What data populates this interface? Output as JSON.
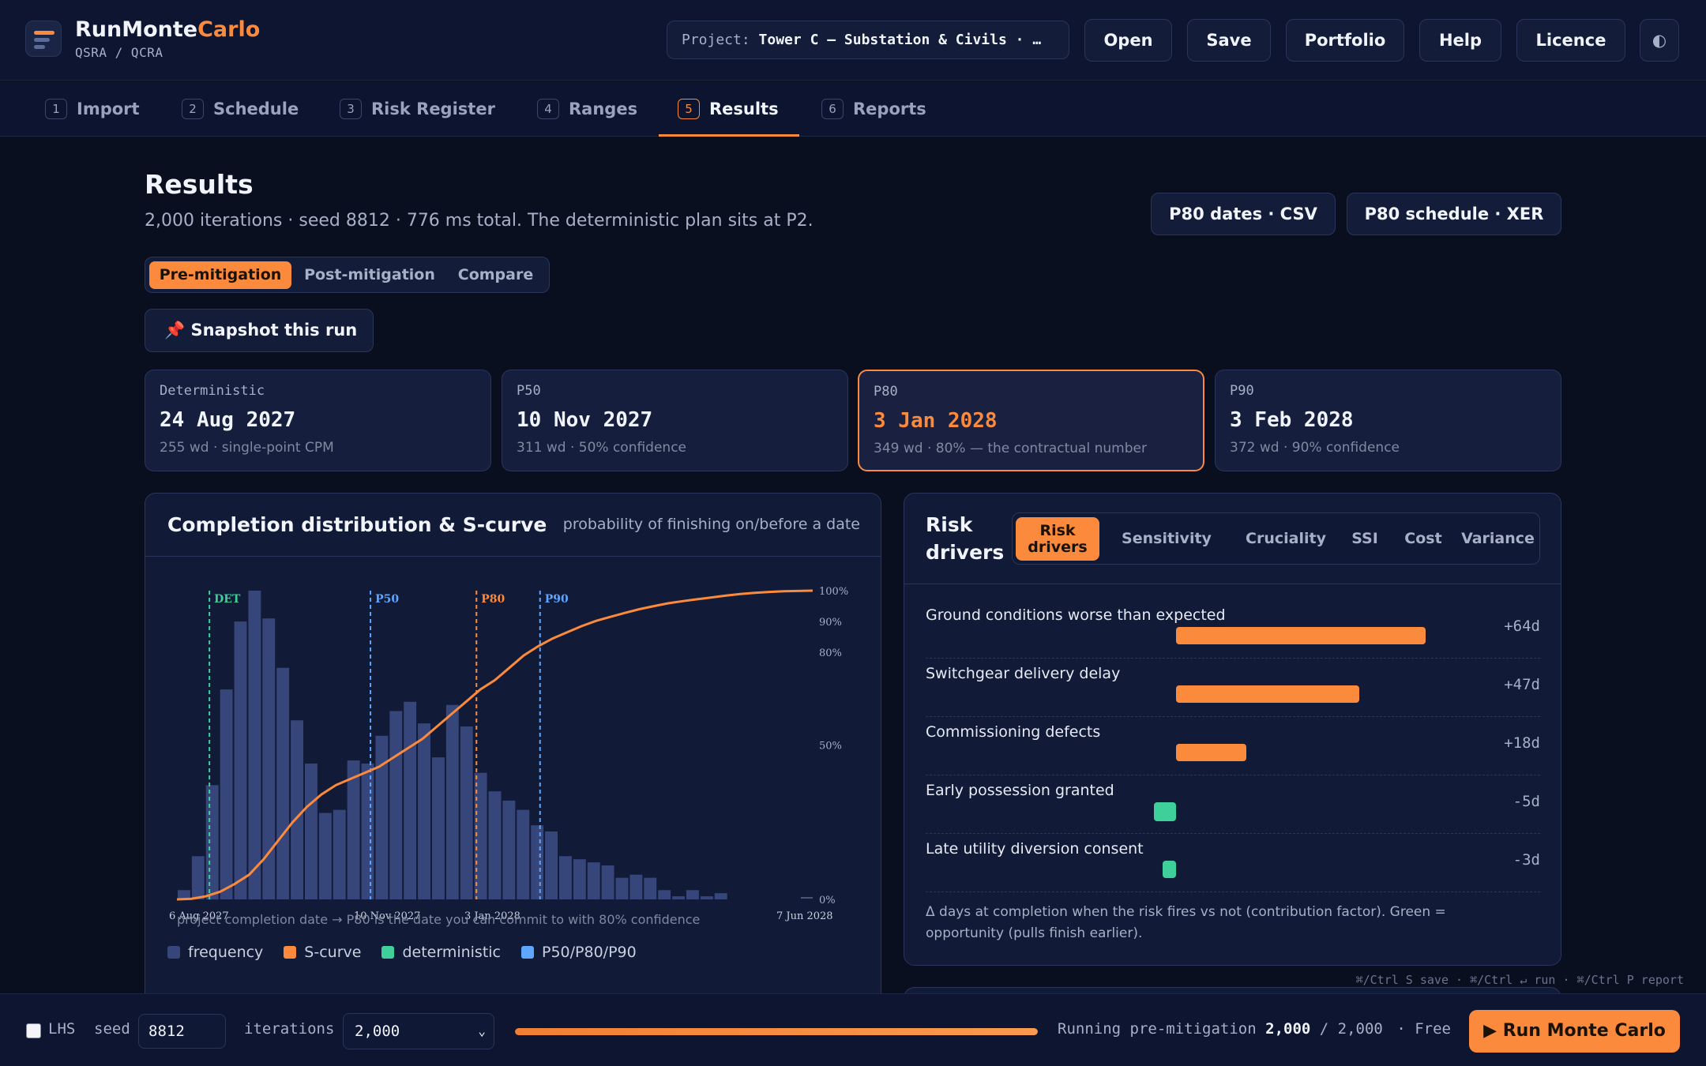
{
  "app": {
    "brand_part1": "RunMonte",
    "brand_part2": "Carlo",
    "subtitle": "QSRA / QCRA",
    "project_label": "Project:",
    "project_name": "Tower C — Substation & Civils · …",
    "buttons": [
      "Open",
      "Save",
      "Portfolio",
      "Help",
      "Licence"
    ],
    "theme_toggle_glyph": "◐"
  },
  "tabs": [
    {
      "num": "1",
      "label": "Import"
    },
    {
      "num": "2",
      "label": "Schedule"
    },
    {
      "num": "3",
      "label": "Risk Register"
    },
    {
      "num": "4",
      "label": "Ranges"
    },
    {
      "num": "5",
      "label": "Results",
      "active": true
    },
    {
      "num": "6",
      "label": "Reports"
    }
  ],
  "results": {
    "title": "Results",
    "subtitle": "2,000 iterations · seed 8812 · 776 ms total. The deterministic plan sits at P2.",
    "export_csv": "P80 dates · CSV",
    "export_xer": "P80 schedule · XER",
    "modes": [
      "Pre-mitigation",
      "Post-mitigation",
      "Compare"
    ],
    "active_mode": "Pre-mitigation",
    "snapshot_label": "📌 Snapshot this run"
  },
  "kpis": [
    {
      "label": "Deterministic",
      "value": "24 Aug 2027",
      "note": "255 wd · single-point CPM"
    },
    {
      "label": "P50",
      "value": "10 Nov 2027",
      "note": "311 wd · 50% confidence"
    },
    {
      "label": "P80",
      "value": "3 Jan 2028",
      "note": "349 wd · 80% — the contractual number",
      "highlight": true
    },
    {
      "label": "P90",
      "value": "3 Feb 2028",
      "note": "372 wd · 90% confidence"
    }
  ],
  "chart_panel": {
    "title": "Completion distribution & S-curve",
    "note": "probability of finishing on/before a date",
    "caption": "project completion date → P80 is the date you can commit to with 80% confidence",
    "legend": [
      "frequency",
      "S-curve",
      "deterministic",
      "P50/P80/P90"
    ]
  },
  "chart_data": {
    "type": "bar",
    "x_unit": "bin",
    "x_tick_labels": [
      "6 Aug 2027",
      "10 Nov 2027",
      "3 Jan 2028",
      "7 Jun 2028"
    ],
    "frequency": [
      3,
      14,
      37,
      68,
      90,
      100,
      91,
      75,
      58,
      44,
      28,
      29,
      45,
      44,
      53,
      61,
      64,
      57,
      46,
      63,
      56,
      41,
      35,
      32,
      29,
      24,
      22,
      14,
      13,
      12,
      11,
      7,
      8,
      7,
      3,
      1,
      3,
      1,
      2
    ],
    "s_curve_percent": [
      0,
      0.2,
      1,
      2.5,
      5,
      8,
      13,
      19,
      25,
      30,
      34,
      37,
      39,
      41,
      43,
      46,
      49,
      52,
      56,
      60,
      64,
      68,
      71,
      75,
      79,
      82,
      84.5,
      86.5,
      88.5,
      90.2,
      91.5,
      92.8,
      94,
      95,
      95.9,
      96.6,
      97.2,
      97.8,
      98.4,
      98.9,
      99.3,
      99.6,
      99.8,
      99.9,
      100
    ],
    "y_right_labels": [
      "100%",
      "90%",
      "80%",
      "50%",
      "0%"
    ],
    "y_right_values": [
      100,
      90,
      80,
      50,
      0
    ],
    "markers": [
      {
        "label": "DET",
        "bin": 2.3
      },
      {
        "label": "P50",
        "bin": 13.7
      },
      {
        "label": "P80",
        "bin": 21.2
      },
      {
        "label": "P90",
        "bin": 25.7
      }
    ],
    "colors": {
      "bars": "#36467a",
      "s_curve": "#fb8a3c",
      "det": "#3ecf9a",
      "pctl": "#5ea6ff",
      "p80": "#fb8a3c"
    }
  },
  "risk_panel": {
    "title": "Risk drivers",
    "tabs": [
      "Risk drivers",
      "Sensitivity",
      "Cruciality",
      "SSI",
      "Cost",
      "Variance"
    ],
    "active_tab": "Risk drivers",
    "rows": [
      {
        "name": "Ground conditions worse than expected",
        "delta": "+64d",
        "days": 64
      },
      {
        "name": "Switchgear delivery delay",
        "delta": "+47d",
        "days": 47
      },
      {
        "name": "Commissioning defects",
        "delta": "+18d",
        "days": 18
      },
      {
        "name": "Early possession granted",
        "delta": "-5d",
        "days": -5
      },
      {
        "name": "Late utility diversion consent",
        "delta": "-3d",
        "days": -3
      }
    ],
    "footnote": "Δ days at completion when the risk fires vs not (contribution factor). Green = opportunity (pulls finish earlier).",
    "colors": {
      "threat": "#fb8a3c",
      "opportunity": "#3ecf9a"
    }
  },
  "shortcuts": "⌘/Ctrl S save · ⌘/Ctrl ↵ run · ⌘/Ctrl P report",
  "bottom": {
    "lhs_label": "LHS",
    "seed_label": "seed",
    "seed_value": "8812",
    "iterations_label": "iterations",
    "iterations_value": "2,000",
    "progress_fraction": 1.0,
    "status_prefix": "Running pre-mitigation",
    "status_done": "2,000",
    "status_total": "/ 2,000",
    "status_suffix": "· Free",
    "run_label": "▶ Run Monte Carlo"
  }
}
